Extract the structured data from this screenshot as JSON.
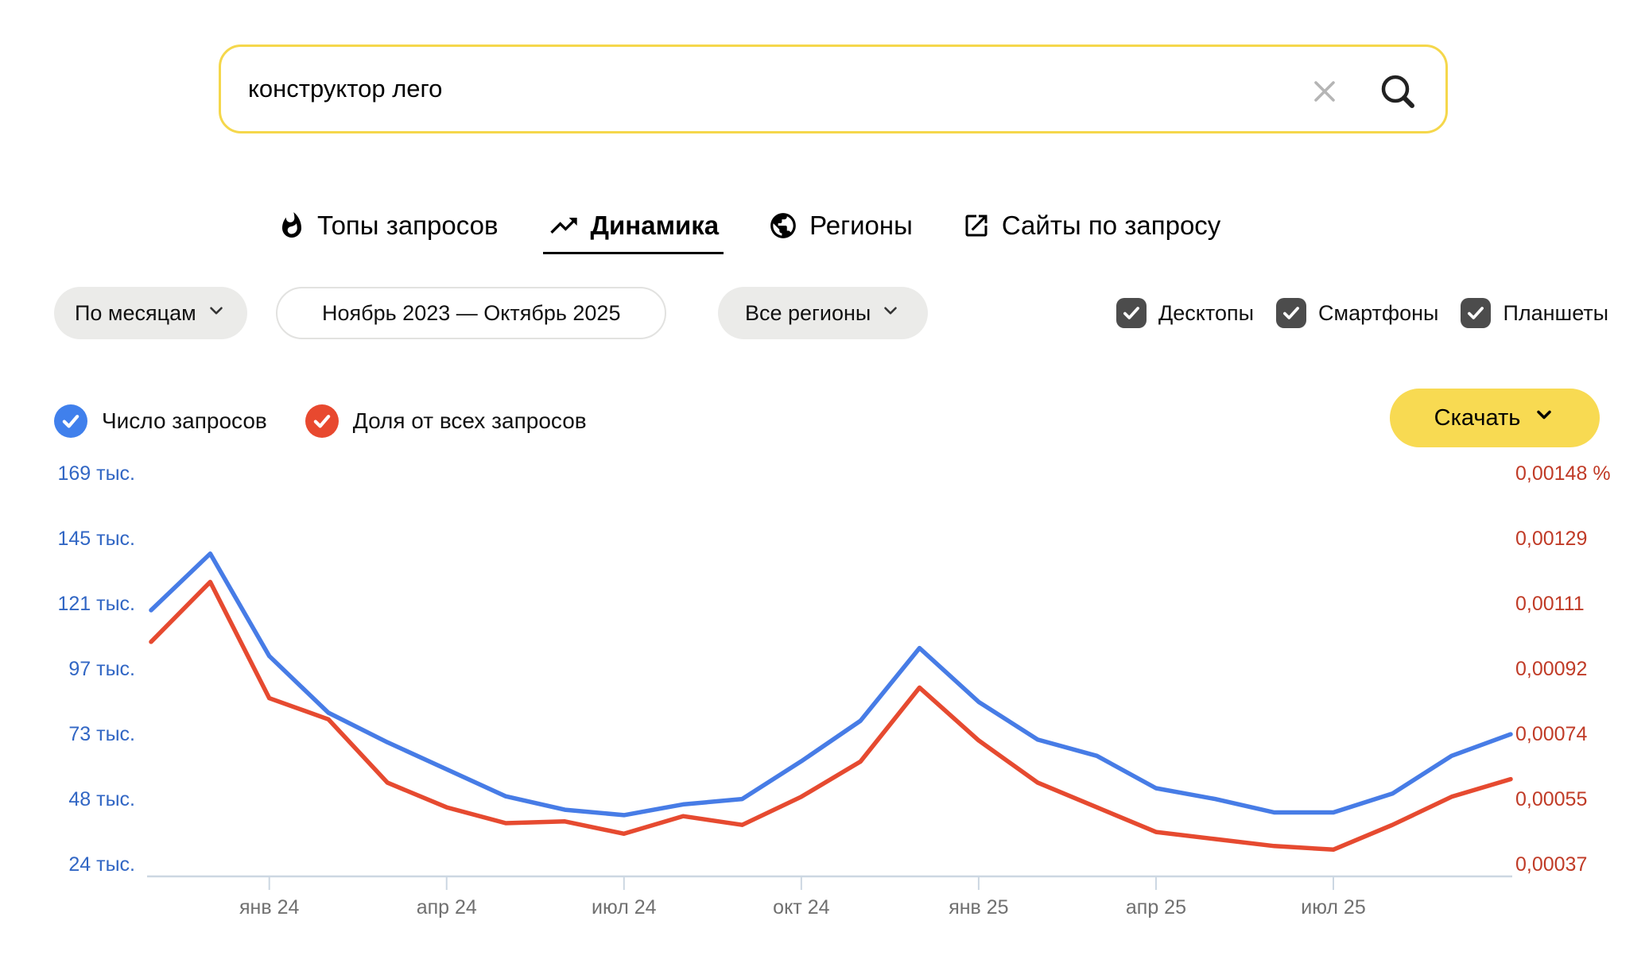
{
  "search": {
    "value": "конструктор лего"
  },
  "tabs": [
    {
      "label": "Топы запросов",
      "icon": "fire-icon",
      "active": false
    },
    {
      "label": "Динамика",
      "icon": "trending-up-icon",
      "active": true
    },
    {
      "label": "Регионы",
      "icon": "globe-icon",
      "active": false
    },
    {
      "label": "Сайты по запросу",
      "icon": "external-link-icon",
      "active": false
    }
  ],
  "filters": {
    "period_label": "По месяцам",
    "date_range_label": "Ноябрь 2023 — Октябрь 2025",
    "region_label": "Все регионы"
  },
  "device_filters": [
    {
      "label": "Десктопы",
      "checked": true
    },
    {
      "label": "Смартфоны",
      "checked": true
    },
    {
      "label": "Планшеты",
      "checked": true
    }
  ],
  "legend": [
    {
      "label": "Число запросов",
      "color": "#4080ec"
    },
    {
      "label": "Доля от всех запросов",
      "color": "#e8492f"
    }
  ],
  "download": {
    "label": "Скачать"
  },
  "colors": {
    "accent_yellow_button": "#f8da52",
    "search_border_yellow": "#f5d74b",
    "left_axis_label_blue": "#3166c4",
    "right_axis_label_red": "#c03b27",
    "line_blue": "#477ce6",
    "line_red": "#e64a30",
    "x_label_gray": "#707070",
    "baseline_gray_blue": "#ccd7e2",
    "checkbox_dark": "#4c4c4c"
  },
  "chart_data": {
    "type": "line",
    "x": [
      "ноя 23",
      "дек 23",
      "янв 24",
      "фев 24",
      "мар 24",
      "апр 24",
      "май 24",
      "июн 24",
      "июл 24",
      "авг 24",
      "сен 24",
      "окт 24",
      "ноя 24",
      "дек 24",
      "янв 25",
      "фев 25",
      "мар 25",
      "апр 25",
      "май 25",
      "июн 25",
      "июл 25",
      "авг 25",
      "сен 25",
      "окт 25"
    ],
    "x_tick_labels": [
      "янв 24",
      "апр 24",
      "июл 24",
      "окт 24",
      "янв 25",
      "апр 25",
      "июл 25"
    ],
    "x_tick_month_indices": [
      2,
      5,
      8,
      11,
      14,
      17,
      20
    ],
    "grid": false,
    "left_axis": {
      "ticks": [
        "169 тыс.",
        "145 тыс.",
        "121 тыс.",
        "97 тыс.",
        "73 тыс.",
        "48 тыс.",
        "24 тыс."
      ],
      "min": 24,
      "max": 169,
      "unit": "тыс."
    },
    "right_axis": {
      "ticks": [
        "0,00148 %",
        "0,00129",
        "0,00111",
        "0,00092",
        "0,00074",
        "0,00055",
        "0,00037"
      ],
      "min": 0.00037,
      "max": 0.00148,
      "unit": "%"
    },
    "series": [
      {
        "name": "Число запросов",
        "axis": "left",
        "color": "#477ce6",
        "unit": "тыс.",
        "values": [
          118,
          139,
          101,
          80,
          69,
          59,
          49,
          44,
          42,
          46,
          48,
          62,
          77,
          104,
          84,
          70,
          64,
          52,
          48,
          43,
          43,
          50,
          64,
          72
        ]
      },
      {
        "name": "Доля от всех запросов",
        "axis": "right",
        "color": "#e64a30",
        "unit": "%",
        "values": [
          0.001,
          0.00117,
          0.00084,
          0.00078,
          0.0006,
          0.00053,
          0.000485,
          0.00049,
          0.000455,
          0.000505,
          0.00048,
          0.00056,
          0.00066,
          0.00087,
          0.00072,
          0.0006,
          0.00053,
          0.00046,
          0.00044,
          0.00042,
          0.00041,
          0.00048,
          0.00056,
          0.00061
        ]
      }
    ]
  }
}
